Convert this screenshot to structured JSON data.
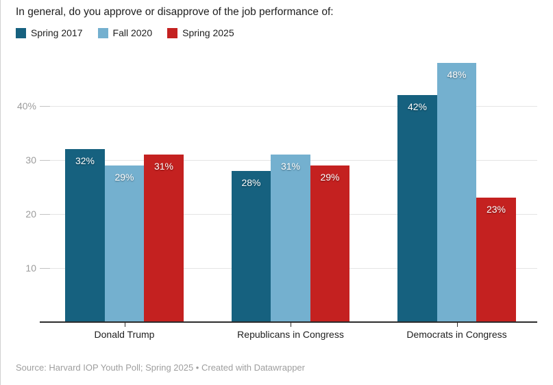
{
  "title": "In general, do you approve or disapprove of the job performance of:",
  "footer": {
    "source": "Source: Harvard IOP Youth Poll; Spring 2025 • Created with Datawrapper"
  },
  "colors": {
    "spring_2017": "#16617f",
    "fall_2020": "#74b0cf",
    "spring_2025": "#c42120",
    "gridline": "#e4e4e4",
    "axis_text": "#9b9b9b",
    "baseline": "#2b2b2b"
  },
  "chart_data": {
    "type": "bar",
    "title": "In general, do you approve or disapprove of the job performance of:",
    "categories": [
      "Donald Trump",
      "Republicans in Congress",
      "Democrats in Congress"
    ],
    "series": [
      {
        "name": "Spring 2017",
        "color": "#16617f",
        "values": [
          32,
          28,
          42
        ]
      },
      {
        "name": "Fall 2020",
        "color": "#74b0cf",
        "values": [
          29,
          31,
          48
        ]
      },
      {
        "name": "Spring 2025",
        "color": "#c42120",
        "values": [
          31,
          29,
          23
        ]
      }
    ],
    "value_suffix": "%",
    "xlabel": "",
    "ylabel": "",
    "ylim": [
      0,
      50
    ],
    "y_ticks": [
      {
        "value": 10,
        "label": "10"
      },
      {
        "value": 20,
        "label": "20"
      },
      {
        "value": 30,
        "label": "30"
      },
      {
        "value": 40,
        "label": "40%"
      }
    ],
    "grid": true,
    "legend_position": "top-left",
    "value_labels": "inside-top"
  }
}
